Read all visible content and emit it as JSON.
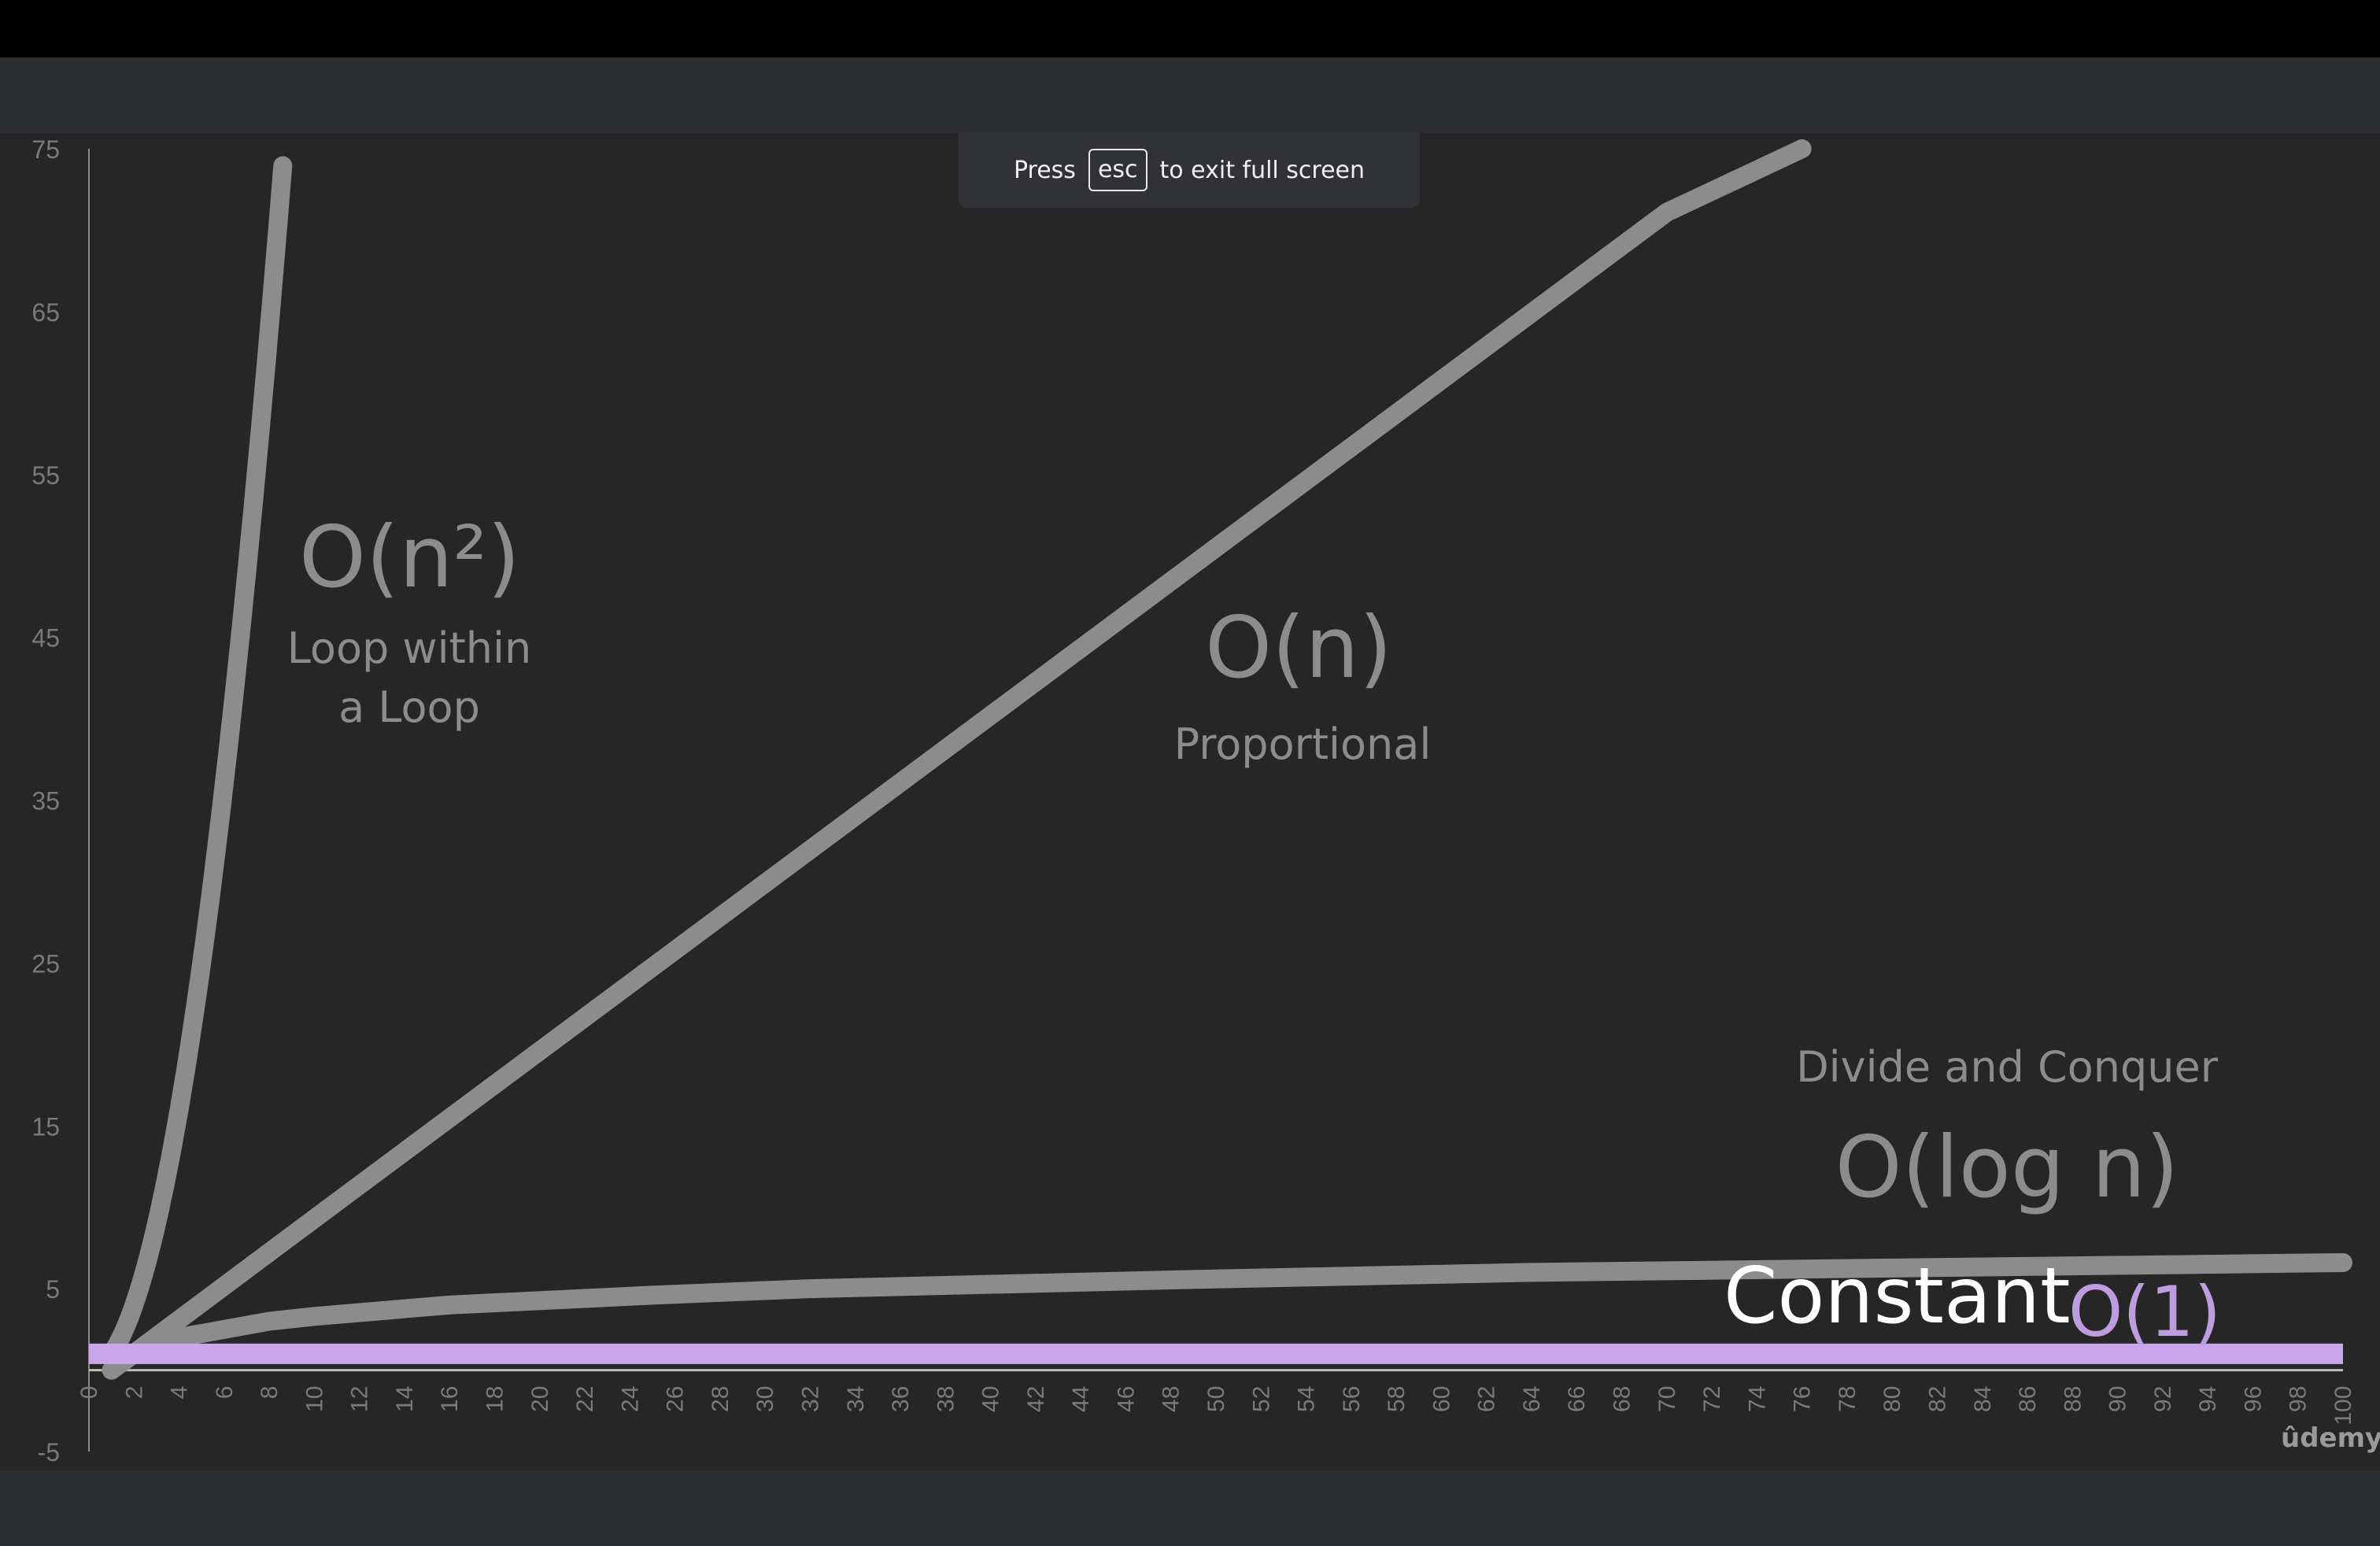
{
  "toast": {
    "press": "Press",
    "key": "esc",
    "suffix": "to exit full screen"
  },
  "labels": {
    "quadratic_main": "O(n²)",
    "quadratic_desc": "Loop within a Loop",
    "linear_main": "O(n)",
    "linear_desc": "Proportional",
    "log_desc": "Divide and Conquer",
    "log_main": "O(log n)",
    "constant_word": "Constant",
    "constant_main": "O(1)"
  },
  "brand": "ûdemy",
  "colors": {
    "curve": "#8c8c8c",
    "constant": "#c9a6ee",
    "background": "#262626",
    "axis_text": "#7a7a7a"
  },
  "chart_data": {
    "type": "line",
    "xlim": [
      0,
      100
    ],
    "ylim": [
      -5,
      75
    ],
    "x_ticks": [
      0,
      2,
      4,
      6,
      8,
      10,
      12,
      14,
      16,
      18,
      20,
      22,
      24,
      26,
      28,
      30,
      32,
      34,
      36,
      38,
      40,
      42,
      44,
      46,
      48,
      50,
      52,
      54,
      56,
      58,
      60,
      62,
      64,
      66,
      68,
      70,
      72,
      74,
      76,
      78,
      80,
      82,
      84,
      86,
      88,
      90,
      92,
      94,
      96,
      98,
      100
    ],
    "y_ticks": [
      -5,
      5,
      15,
      25,
      35,
      45,
      55,
      65,
      75
    ],
    "grid": false,
    "series": [
      {
        "id": "quadratic",
        "x": [
          1,
          2,
          3,
          4,
          5,
          6,
          7,
          8.66
        ],
        "y": [
          0,
          4,
          9,
          16,
          25,
          36,
          49,
          75
        ]
      },
      {
        "id": "linear",
        "x": [
          1,
          10,
          20,
          30,
          40,
          50,
          60,
          70,
          76
        ],
        "y": [
          0,
          9.3,
          19.6,
          29.9,
          40.2,
          50.5,
          60.8,
          71.1,
          75
        ]
      },
      {
        "id": "logarithmic",
        "x": [
          1,
          2,
          4,
          8,
          10,
          16,
          25,
          32,
          50,
          64,
          100
        ],
        "y": [
          0,
          1.0,
          2.0,
          3.0,
          3.3,
          4.0,
          4.6,
          5.0,
          5.6,
          6.0,
          6.6
        ]
      },
      {
        "id": "constant",
        "x": [
          0,
          100
        ],
        "y": [
          1,
          1
        ]
      }
    ]
  }
}
